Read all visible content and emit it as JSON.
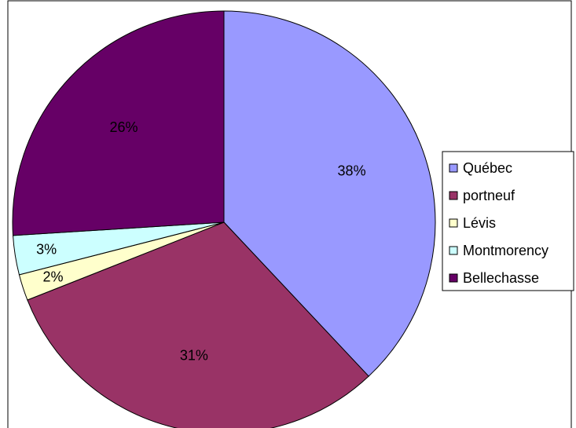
{
  "chart_data": {
    "type": "pie",
    "categories": [
      "Québec",
      "portneuf",
      "Lévis",
      "Montmorency",
      "Bellechasse"
    ],
    "values": [
      38,
      31,
      2,
      3,
      26
    ],
    "value_labels": [
      "38%",
      "31%",
      "2%",
      "3%",
      "26%"
    ],
    "colors": [
      "#9999ff",
      "#993366",
      "#ffffcc",
      "#ccffff",
      "#660066"
    ],
    "legend": "right"
  }
}
